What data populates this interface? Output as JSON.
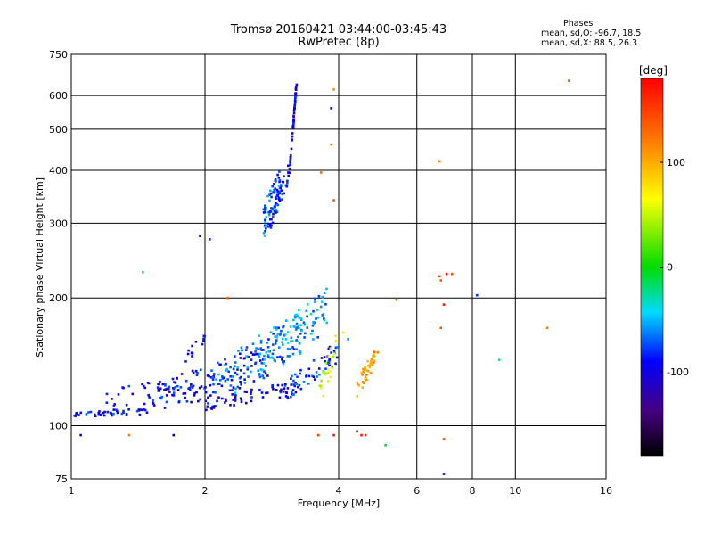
{
  "chart_data": {
    "type": "scatter",
    "title": "Tromsø 20160421 03:44:00-03:45:43",
    "subtitle": "RwPretec (8p)",
    "xlabel": "Frequency [MHz]",
    "ylabel": "Stationary phase Virtual Height [km]",
    "x_scale": "log",
    "y_scale": "log",
    "xlim": [
      1,
      16
    ],
    "ylim": [
      75,
      750
    ],
    "x_ticks": [
      1,
      2,
      4,
      6,
      8,
      10,
      16
    ],
    "y_ticks": [
      75,
      100,
      200,
      300,
      400,
      500,
      600,
      750
    ],
    "grid": true,
    "phase_stats": {
      "heading": "Phases",
      "line_o": "mean, sd,O: -96.7, 18.5",
      "line_x": "mean, sd,X:  88.5, 26.3"
    },
    "colorbar": {
      "label": "[deg]",
      "range": [
        -180,
        180
      ],
      "ticks": [
        100,
        0,
        -100
      ],
      "colormap": "rainbow"
    },
    "traces": [
      {
        "x0": 1.0,
        "x1": 1.5,
        "h0": 106,
        "h1": 108,
        "phase": -95,
        "n": 36,
        "hspread": 0.015
      },
      {
        "x0": 1.2,
        "x1": 2.1,
        "h0": 112,
        "h1": 118,
        "phase": -92,
        "n": 50,
        "hspread": 0.06
      },
      {
        "x0": 1.25,
        "x1": 1.9,
        "h0": 124,
        "h1": 126,
        "phase": -95,
        "n": 30,
        "hspread": 0.03
      },
      {
        "x0": 1.7,
        "x1": 2.8,
        "h0": 120,
        "h1": 140,
        "phase": -90,
        "n": 70,
        "hspread": 0.09
      },
      {
        "x0": 1.8,
        "x1": 2.0,
        "h0": 145,
        "h1": 160,
        "phase": -100,
        "n": 14,
        "hspread": 0.03
      },
      {
        "x0": 2.0,
        "x1": 3.3,
        "h0": 112,
        "h1": 124,
        "phase": -95,
        "n": 60,
        "hspread": 0.04
      },
      {
        "x0": 2.1,
        "x1": 3.4,
        "h0": 125,
        "h1": 170,
        "phase": -70,
        "n": 110,
        "hspread": 0.12
      },
      {
        "x0": 2.6,
        "x1": 3.8,
        "h0": 140,
        "h1": 190,
        "phase": -55,
        "n": 90,
        "hspread": 0.12
      },
      {
        "x0": 3.0,
        "x1": 4.0,
        "h0": 120,
        "h1": 150,
        "phase": -85,
        "n": 60,
        "hspread": 0.06
      },
      {
        "x0": 3.6,
        "x1": 4.1,
        "h0": 115,
        "h1": 175,
        "phase": 60,
        "n": 22,
        "hspread": 0.08
      },
      {
        "x0": 4.4,
        "x1": 4.9,
        "h0": 123,
        "h1": 148,
        "phase": 105,
        "n": 40,
        "hspread": 0.05
      },
      {
        "x0": 2.7,
        "x1": 2.95,
        "h0": 300,
        "h1": 370,
        "phase": -70,
        "n": 70,
        "hspread": 0.09
      },
      {
        "x0": 2.8,
        "x1": 3.1,
        "h0": 300,
        "h1": 400,
        "phase": -90,
        "n": 40,
        "hspread": 0.05
      },
      {
        "x0": 3.1,
        "x1": 3.22,
        "h0": 400,
        "h1": 650,
        "phase": -100,
        "n": 55,
        "hspread": 0.02
      }
    ],
    "points": [
      {
        "x": 1.45,
        "y": 230,
        "phase": -40
      },
      {
        "x": 1.95,
        "y": 280,
        "phase": -100
      },
      {
        "x": 2.05,
        "y": 275,
        "phase": -80
      },
      {
        "x": 2.25,
        "y": 200,
        "phase": 130
      },
      {
        "x": 1.35,
        "y": 95,
        "phase": 120
      },
      {
        "x": 1.7,
        "y": 95,
        "phase": -100
      },
      {
        "x": 1.05,
        "y": 95,
        "phase": -100
      },
      {
        "x": 3.9,
        "y": 620,
        "phase": 110
      },
      {
        "x": 3.85,
        "y": 560,
        "phase": -90
      },
      {
        "x": 3.85,
        "y": 460,
        "phase": 120
      },
      {
        "x": 3.65,
        "y": 395,
        "phase": 130
      },
      {
        "x": 3.9,
        "y": 340,
        "phase": 140
      },
      {
        "x": 3.6,
        "y": 95,
        "phase": 150
      },
      {
        "x": 3.9,
        "y": 95,
        "phase": 170
      },
      {
        "x": 4.4,
        "y": 97,
        "phase": -80
      },
      {
        "x": 4.5,
        "y": 95,
        "phase": 170
      },
      {
        "x": 4.6,
        "y": 95,
        "phase": 150
      },
      {
        "x": 5.1,
        "y": 90,
        "phase": -10
      },
      {
        "x": 5.4,
        "y": 198,
        "phase": 120
      },
      {
        "x": 4.2,
        "y": 160,
        "phase": -60
      },
      {
        "x": 6.75,
        "y": 420,
        "phase": 120
      },
      {
        "x": 6.75,
        "y": 225,
        "phase": 150
      },
      {
        "x": 6.8,
        "y": 220,
        "phase": 140
      },
      {
        "x": 7.0,
        "y": 228,
        "phase": 175
      },
      {
        "x": 7.2,
        "y": 228,
        "phase": 140
      },
      {
        "x": 6.9,
        "y": 193,
        "phase": 170
      },
      {
        "x": 6.8,
        "y": 170,
        "phase": 140
      },
      {
        "x": 6.9,
        "y": 93,
        "phase": 140
      },
      {
        "x": 6.9,
        "y": 77,
        "phase": -80
      },
      {
        "x": 8.2,
        "y": 203,
        "phase": -80
      },
      {
        "x": 9.2,
        "y": 143,
        "phase": -30
      },
      {
        "x": 11.8,
        "y": 170,
        "phase": 120
      },
      {
        "x": 13.2,
        "y": 650,
        "phase": 140
      }
    ]
  }
}
